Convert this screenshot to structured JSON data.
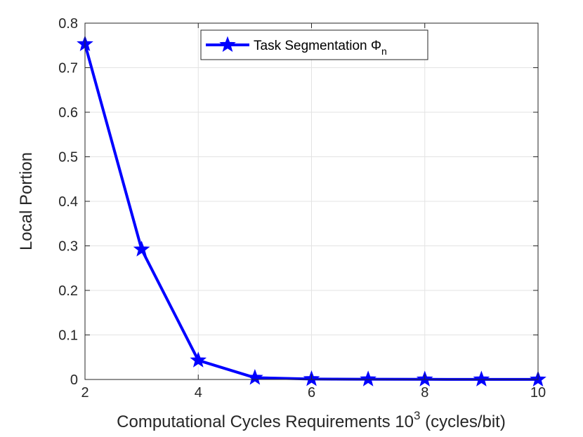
{
  "chart_data": {
    "type": "line",
    "title": "",
    "xlabel": "Computational Cycles Requirements 10",
    "xlabel_superscript": "3",
    "xlabel_suffix": " (cycles/bit)",
    "ylabel": "Local Portion",
    "xlim": [
      2,
      10
    ],
    "ylim": [
      0,
      0.8
    ],
    "grid": true,
    "x_ticks": [
      2,
      4,
      6,
      8,
      10
    ],
    "x_tick_labels": [
      "2",
      "4",
      "6",
      "8",
      "10"
    ],
    "y_ticks": [
      0,
      0.1,
      0.2,
      0.3,
      0.4,
      0.5,
      0.6,
      0.7,
      0.8
    ],
    "y_tick_labels": [
      "0",
      "0.1",
      "0.2",
      "0.3",
      "0.4",
      "0.5",
      "0.6",
      "0.7",
      "0.8"
    ],
    "legend_position": "top-center",
    "series": [
      {
        "name": "Task Segmentation Φ",
        "name_subscript": "n",
        "color": "#0000ff",
        "marker": "star",
        "x": [
          2,
          3,
          4,
          5,
          6,
          7,
          8,
          9,
          10
        ],
        "values": [
          0.753,
          0.292,
          0.043,
          0.004,
          0.001,
          0.0005,
          0.0003,
          0.0002,
          0.0001
        ]
      }
    ]
  }
}
